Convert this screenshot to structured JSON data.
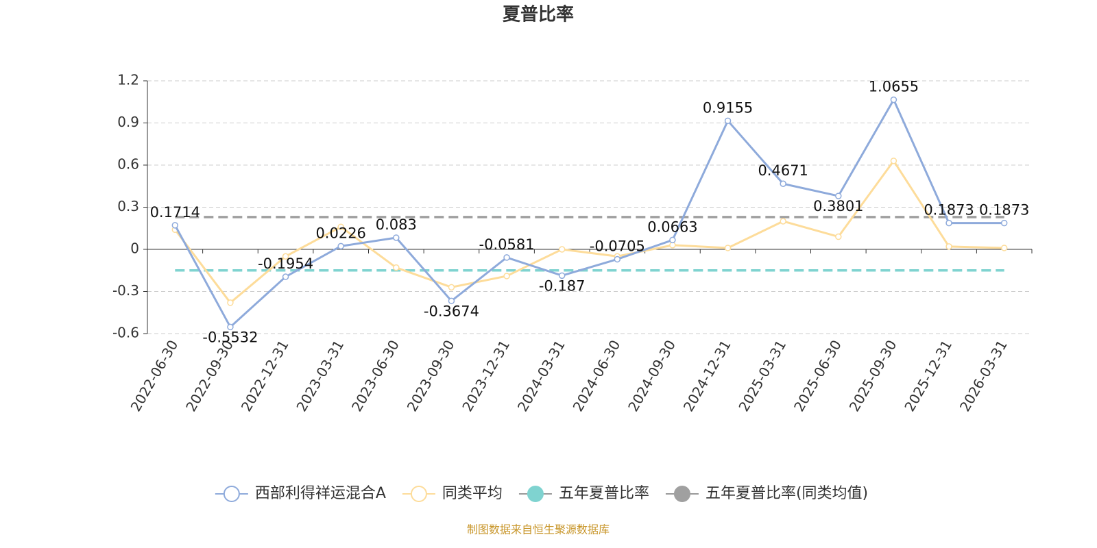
{
  "chart_data": {
    "type": "line",
    "title": "夏普比率",
    "categories": [
      "2022-06-30",
      "2022-09-30",
      "2022-12-31",
      "2023-03-31",
      "2023-06-30",
      "2023-09-30",
      "2023-12-31",
      "2024-03-31",
      "2024-06-30",
      "2024-09-30",
      "2024-12-31",
      "2025-03-31",
      "2025-06-30",
      "2025-09-30",
      "2025-12-31",
      "2026-03-31"
    ],
    "series": [
      {
        "name": "西部利得祥运混合A",
        "color": "#8eaadb",
        "labels": true,
        "values": [
          0.1714,
          -0.5532,
          -0.1954,
          0.0226,
          0.083,
          -0.3674,
          -0.0581,
          -0.187,
          -0.0705,
          0.0663,
          0.9155,
          0.4671,
          0.3801,
          1.0655,
          0.1873,
          0.1873
        ]
      },
      {
        "name": "同类平均",
        "color": "#fddc9a",
        "labels": false,
        "values": [
          0.14,
          -0.38,
          -0.05,
          0.16,
          -0.13,
          -0.27,
          -0.19,
          0.0,
          -0.05,
          0.03,
          0.01,
          0.2,
          0.09,
          0.63,
          0.02,
          0.01
        ]
      }
    ],
    "reference_lines": [
      {
        "name": "五年夏普比率",
        "color": "#7fd3d0",
        "value": -0.15
      },
      {
        "name": "五年夏普比率(同类均值)",
        "color": "#a0a0a0",
        "value": 0.23
      }
    ],
    "ylim": [
      -0.6,
      1.2
    ],
    "yticks": [
      -0.6,
      -0.3,
      0,
      0.3,
      0.6,
      0.9,
      1.2
    ],
    "grid": true,
    "source": "制图数据来自恒生聚源数据库"
  }
}
